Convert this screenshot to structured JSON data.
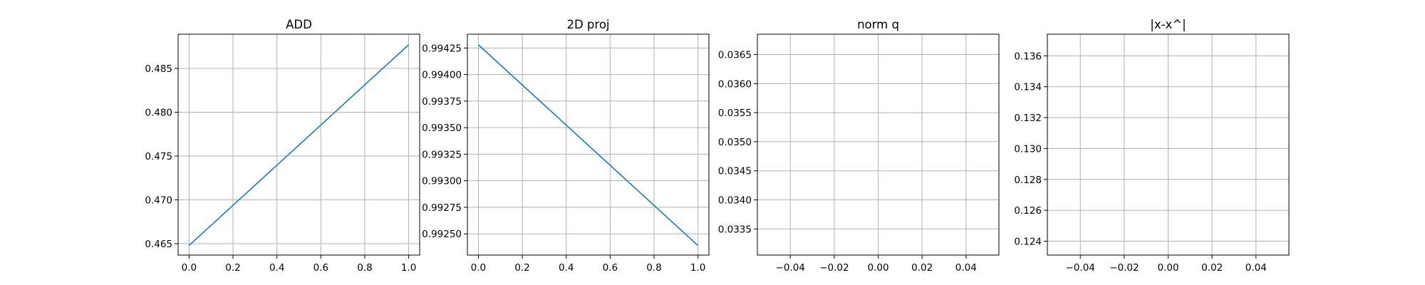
{
  "chart_data": [
    {
      "type": "line",
      "title": "ADD",
      "xlabel": "",
      "ylabel": "",
      "xlim": [
        -0.05,
        1.05
      ],
      "ylim": [
        0.4637,
        0.4889
      ],
      "xticks": [
        0.0,
        0.2,
        0.4,
        0.6,
        0.8,
        1.0
      ],
      "xtick_labels": [
        "0.0",
        "0.2",
        "0.4",
        "0.6",
        "0.8",
        "1.0"
      ],
      "yticks": [
        0.465,
        0.47,
        0.475,
        0.48,
        0.485
      ],
      "ytick_labels": [
        "0.465",
        "0.470",
        "0.475",
        "0.480",
        "0.485"
      ],
      "grid": true,
      "series": [
        {
          "x": [
            0,
            1
          ],
          "y": [
            0.4648,
            0.4877
          ],
          "color": "#1f77b4"
        }
      ]
    },
    {
      "type": "line",
      "title": "2D proj",
      "xlabel": "",
      "ylabel": "",
      "xlim": [
        -0.05,
        1.05
      ],
      "ylim": [
        0.9923,
        0.99438
      ],
      "xticks": [
        0.0,
        0.2,
        0.4,
        0.6,
        0.8,
        1.0
      ],
      "xtick_labels": [
        "0.0",
        "0.2",
        "0.4",
        "0.6",
        "0.8",
        "1.0"
      ],
      "yticks": [
        0.9925,
        0.99275,
        0.993,
        0.99325,
        0.9935,
        0.99375,
        0.994,
        0.99425
      ],
      "ytick_labels": [
        "0.99250",
        "0.99275",
        "0.99300",
        "0.99325",
        "0.99350",
        "0.99375",
        "0.99400",
        "0.99425"
      ],
      "grid": true,
      "series": [
        {
          "x": [
            0,
            1
          ],
          "y": [
            0.99428,
            0.99239
          ],
          "color": "#1f77b4"
        }
      ]
    },
    {
      "type": "line",
      "title": "norm q",
      "xlabel": "",
      "ylabel": "",
      "xlim": [
        -0.055,
        0.055
      ],
      "ylim": [
        0.03305,
        0.03685
      ],
      "xticks": [
        -0.04,
        -0.02,
        0.0,
        0.02,
        0.04
      ],
      "xtick_labels": [
        "−0.04",
        "−0.02",
        "0.00",
        "0.02",
        "0.04"
      ],
      "yticks": [
        0.0335,
        0.034,
        0.0345,
        0.035,
        0.0355,
        0.036,
        0.0365
      ],
      "ytick_labels": [
        "0.0335",
        "0.0340",
        "0.0345",
        "0.0350",
        "0.0355",
        "0.0360",
        "0.0365"
      ],
      "grid": true,
      "series": []
    },
    {
      "type": "line",
      "title": "|x-x^|",
      "xlabel": "",
      "ylabel": "",
      "xlim": [
        -0.055,
        0.055
      ],
      "ylim": [
        0.1231,
        0.1374
      ],
      "xticks": [
        -0.04,
        -0.02,
        0.0,
        0.02,
        0.04
      ],
      "xtick_labels": [
        "−0.04",
        "−0.02",
        "0.00",
        "0.02",
        "0.04"
      ],
      "yticks": [
        0.124,
        0.126,
        0.128,
        0.13,
        0.132,
        0.134,
        0.136
      ],
      "ytick_labels": [
        "0.124",
        "0.126",
        "0.128",
        "0.130",
        "0.132",
        "0.134",
        "0.136"
      ],
      "grid": true,
      "series": []
    }
  ]
}
